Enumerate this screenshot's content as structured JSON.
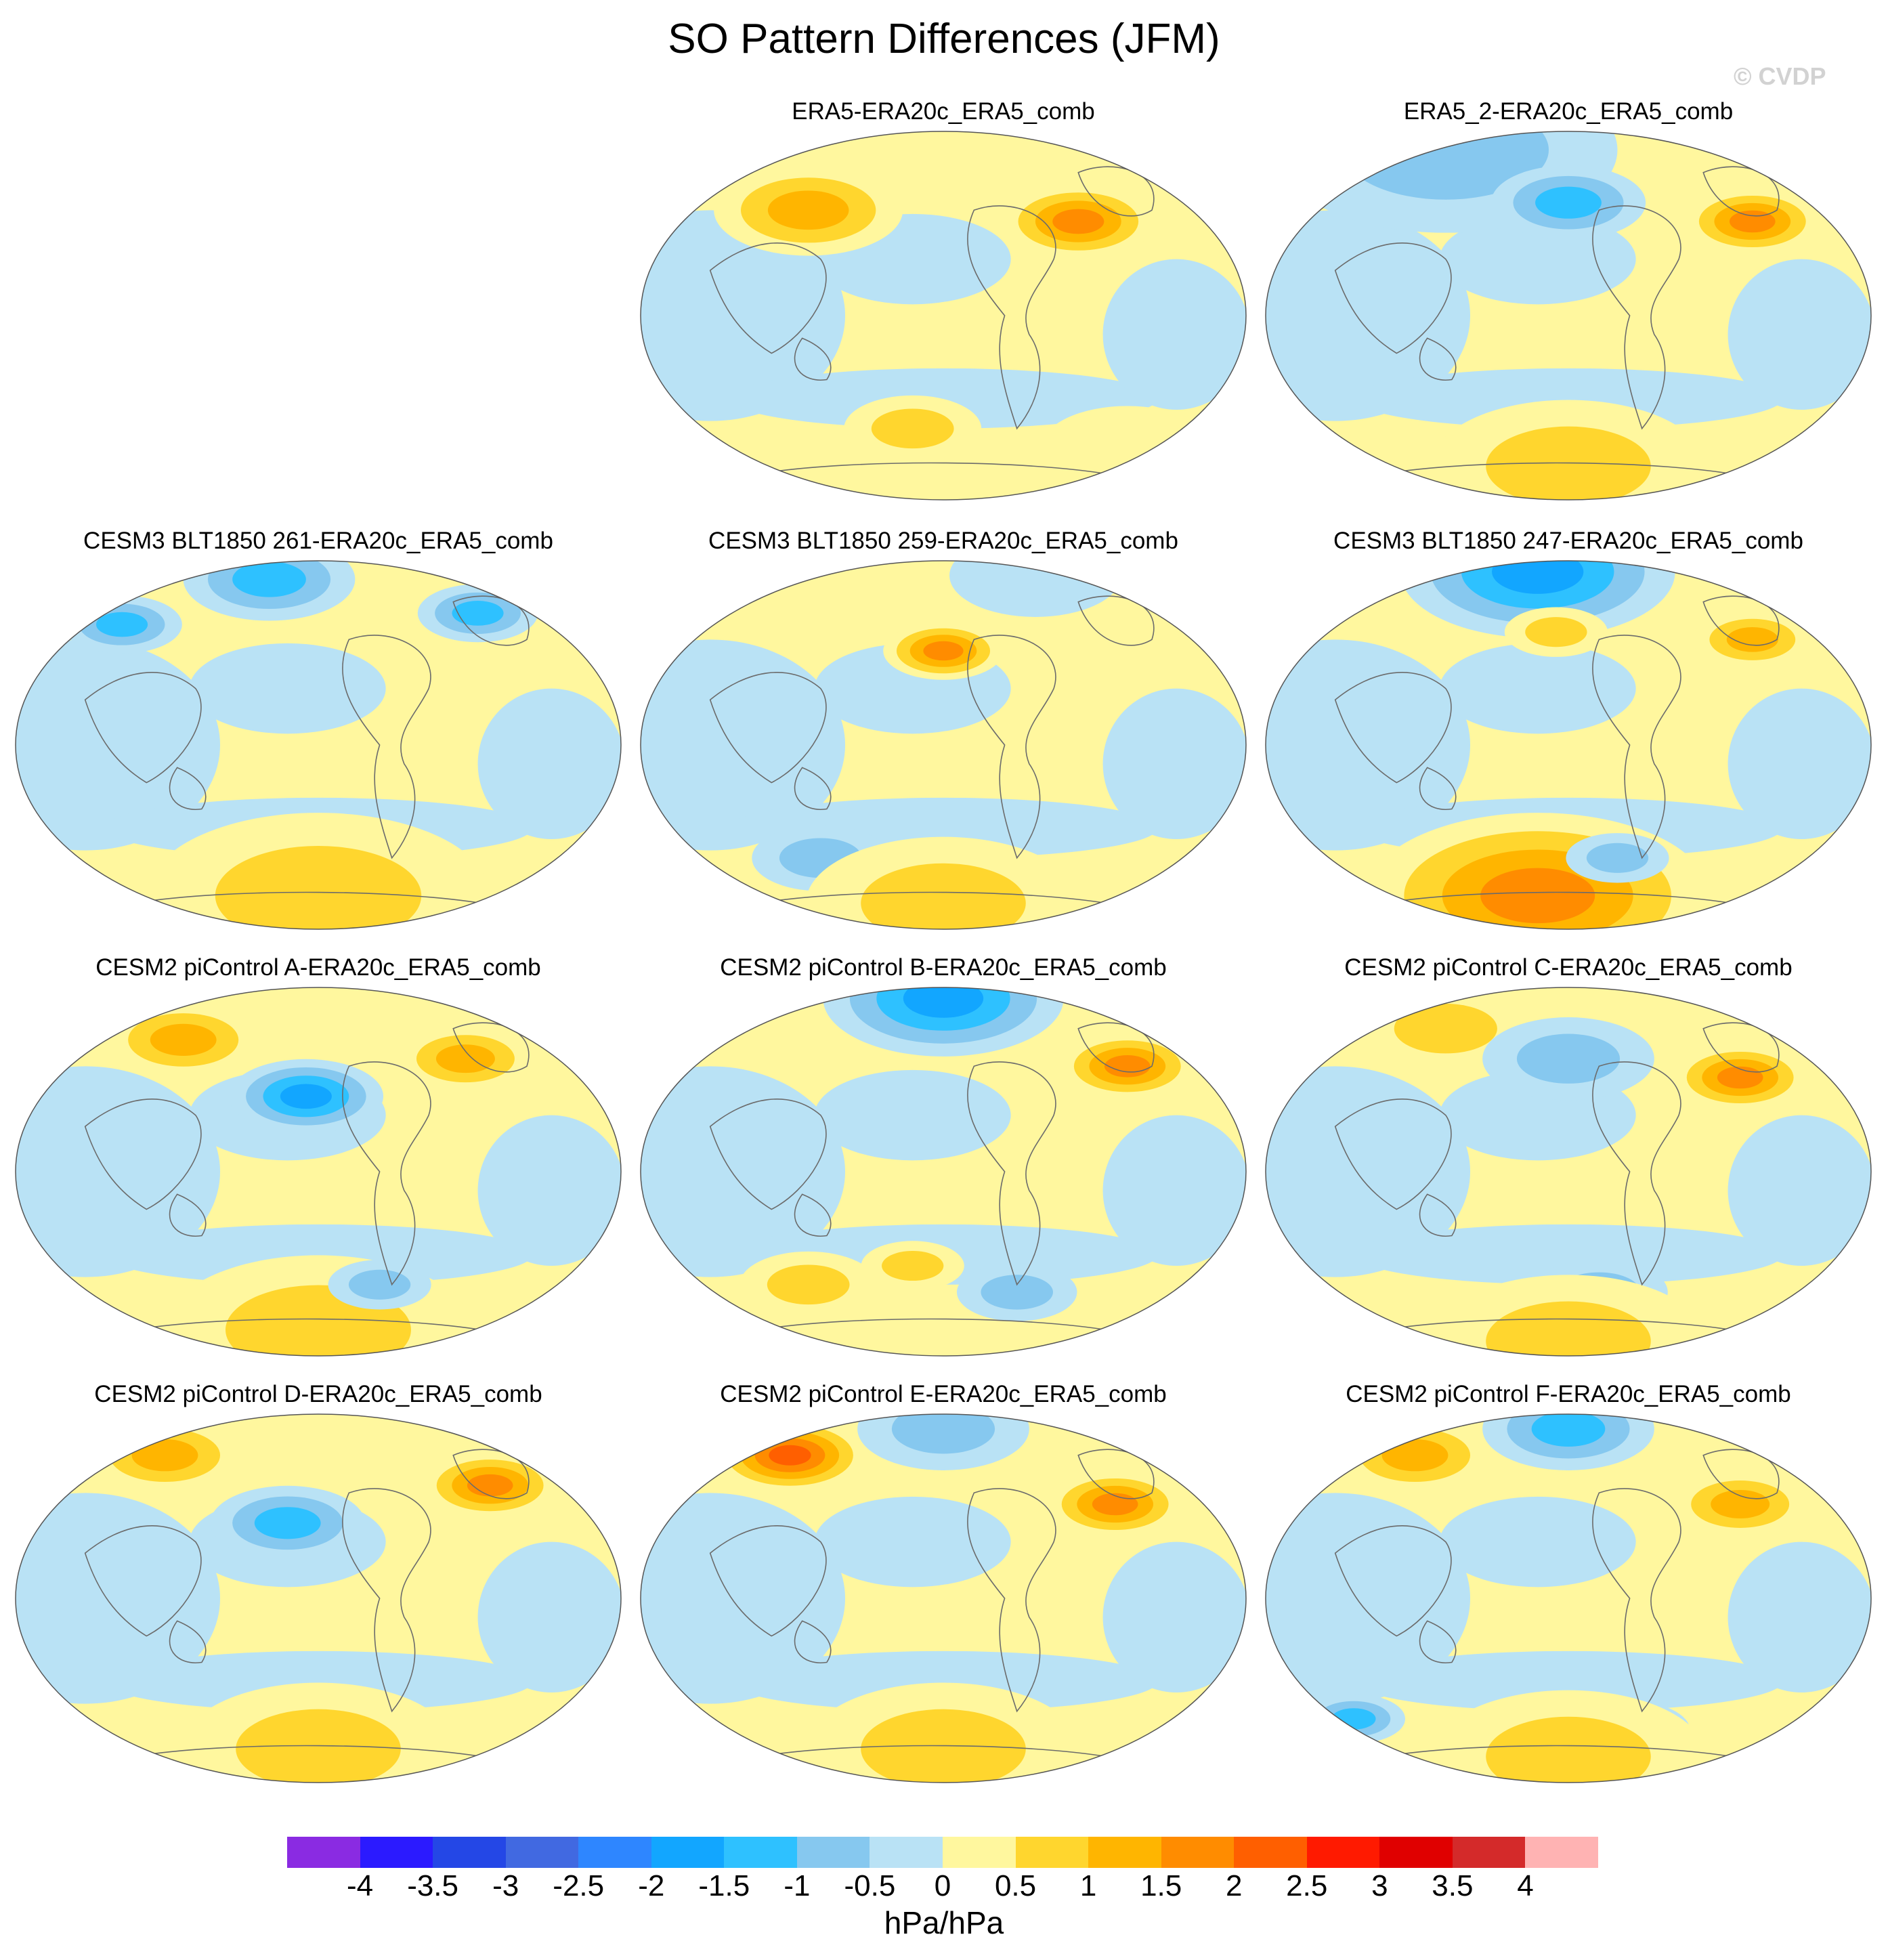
{
  "title": "SO Pattern Differences (JFM)",
  "watermark": "© CVDP",
  "panels": [
    {
      "title": "ERA5-ERA20c_ERA5_comb",
      "anomalies": [
        [
          0.28,
          0.22,
          1.4,
          0.55
        ],
        [
          0.72,
          0.25,
          2.0,
          0.45
        ],
        [
          0.45,
          0.8,
          0.6,
          0.4
        ],
        [
          0.8,
          0.85,
          0.5,
          0.5
        ]
      ]
    },
    {
      "title": "ERA5_2-ERA20c_ERA5_comb",
      "anomalies": [
        [
          0.3,
          0.06,
          -0.6,
          1.0
        ],
        [
          0.5,
          0.2,
          -1.2,
          0.45
        ],
        [
          0.8,
          0.25,
          1.7,
          0.4
        ],
        [
          0.5,
          0.9,
          0.6,
          0.8
        ]
      ]
    },
    {
      "title": "CESM3 BLT1850 261-ERA20c_ERA5_comb",
      "anomalies": [
        [
          0.42,
          0.06,
          -1.3,
          0.5
        ],
        [
          0.18,
          0.18,
          -1.2,
          0.35
        ],
        [
          0.76,
          0.15,
          -1.1,
          0.35
        ],
        [
          0.5,
          0.9,
          0.9,
          1.0
        ]
      ]
    },
    {
      "title": "CESM3 BLT1850 259-ERA20c_ERA5_comb",
      "anomalies": [
        [
          0.5,
          0.25,
          1.6,
          0.35
        ],
        [
          0.65,
          0.05,
          -0.5,
          0.5
        ],
        [
          0.3,
          0.8,
          -0.8,
          0.4
        ],
        [
          0.5,
          0.92,
          0.7,
          0.8
        ]
      ]
    },
    {
      "title": "CESM3 BLT1850 247-ERA20c_ERA5_comb",
      "anomalies": [
        [
          0.45,
          0.04,
          -1.6,
          0.8
        ],
        [
          0.8,
          0.22,
          1.3,
          0.35
        ],
        [
          0.48,
          0.2,
          1.0,
          0.3
        ],
        [
          0.45,
          0.9,
          2.0,
          1.0
        ],
        [
          0.58,
          0.8,
          -0.8,
          0.3
        ]
      ]
    },
    {
      "title": "CESM2 piControl A-ERA20c_ERA5_comb",
      "anomalies": [
        [
          0.28,
          0.15,
          1.4,
          0.45
        ],
        [
          0.74,
          0.2,
          1.5,
          0.4
        ],
        [
          0.48,
          0.3,
          -1.6,
          0.45
        ],
        [
          0.5,
          0.92,
          0.8,
          0.9
        ],
        [
          0.6,
          0.8,
          -0.8,
          0.3
        ]
      ]
    },
    {
      "title": "CESM2 piControl B-ERA20c_ERA5_comb",
      "anomalies": [
        [
          0.5,
          0.04,
          -1.6,
          0.7
        ],
        [
          0.8,
          0.22,
          1.8,
          0.4
        ],
        [
          0.28,
          0.8,
          1.0,
          0.4
        ],
        [
          0.62,
          0.82,
          -1.0,
          0.35
        ],
        [
          0.45,
          0.75,
          0.8,
          0.3
        ]
      ]
    },
    {
      "title": "CESM2 piControl C-ERA20c_ERA5_comb",
      "anomalies": [
        [
          0.3,
          0.12,
          1.0,
          0.5
        ],
        [
          0.78,
          0.25,
          1.7,
          0.4
        ],
        [
          0.5,
          0.2,
          -0.7,
          0.5
        ],
        [
          0.55,
          0.82,
          -1.0,
          0.4
        ],
        [
          0.5,
          0.95,
          0.6,
          0.8
        ]
      ]
    },
    {
      "title": "CESM2 piControl D-ERA20c_ERA5_comb",
      "anomalies": [
        [
          0.25,
          0.12,
          1.2,
          0.45
        ],
        [
          0.78,
          0.2,
          1.8,
          0.4
        ],
        [
          0.45,
          0.3,
          -1.2,
          0.45
        ],
        [
          0.5,
          0.9,
          0.8,
          0.8
        ]
      ]
    },
    {
      "title": "CESM2 piControl E-ERA20c_ERA5_comb",
      "anomalies": [
        [
          0.25,
          0.12,
          2.2,
          0.45
        ],
        [
          0.78,
          0.25,
          1.7,
          0.4
        ],
        [
          0.5,
          0.05,
          -1.0,
          0.5
        ],
        [
          0.5,
          0.9,
          0.6,
          0.8
        ]
      ]
    },
    {
      "title": "CESM2 piControl F-ERA20c_ERA5_comb",
      "anomalies": [
        [
          0.25,
          0.12,
          1.5,
          0.45
        ],
        [
          0.78,
          0.25,
          1.5,
          0.4
        ],
        [
          0.5,
          0.05,
          -1.2,
          0.5
        ],
        [
          0.15,
          0.82,
          -1.1,
          0.3
        ],
        [
          0.6,
          0.85,
          -1.0,
          0.35
        ],
        [
          0.5,
          0.92,
          0.9,
          0.8
        ]
      ]
    }
  ],
  "chart_data": {
    "type": "heatmap",
    "title": "SO Pattern Differences (JFM)",
    "units": "hPa/hPa",
    "colorbar": {
      "levels": [
        -4,
        -3.5,
        -3,
        -2.5,
        -2,
        -1.5,
        -1,
        -0.5,
        0,
        0.5,
        1,
        1.5,
        2,
        2.5,
        3,
        3.5,
        4
      ],
      "tick_labels": [
        "-4",
        "-3.5",
        "-3",
        "-2.5",
        "-2",
        "-1.5",
        "-1",
        "-0.5",
        "0",
        "0.5",
        "1",
        "1.5",
        "2",
        "2.5",
        "3",
        "3.5",
        "4"
      ],
      "colors": [
        "#8a2be2",
        "#2b1aff",
        "#2447e6",
        "#4169e1",
        "#2e86ff",
        "#12a6ff",
        "#2ec1ff",
        "#86c8ef",
        "#b9e2f5",
        "#fff79e",
        "#ffd62e",
        "#ffb500",
        "#ff8c00",
        "#ff5f00",
        "#ff1a00",
        "#e00000",
        "#d42a2a",
        "#ffb3b3"
      ]
    }
  }
}
